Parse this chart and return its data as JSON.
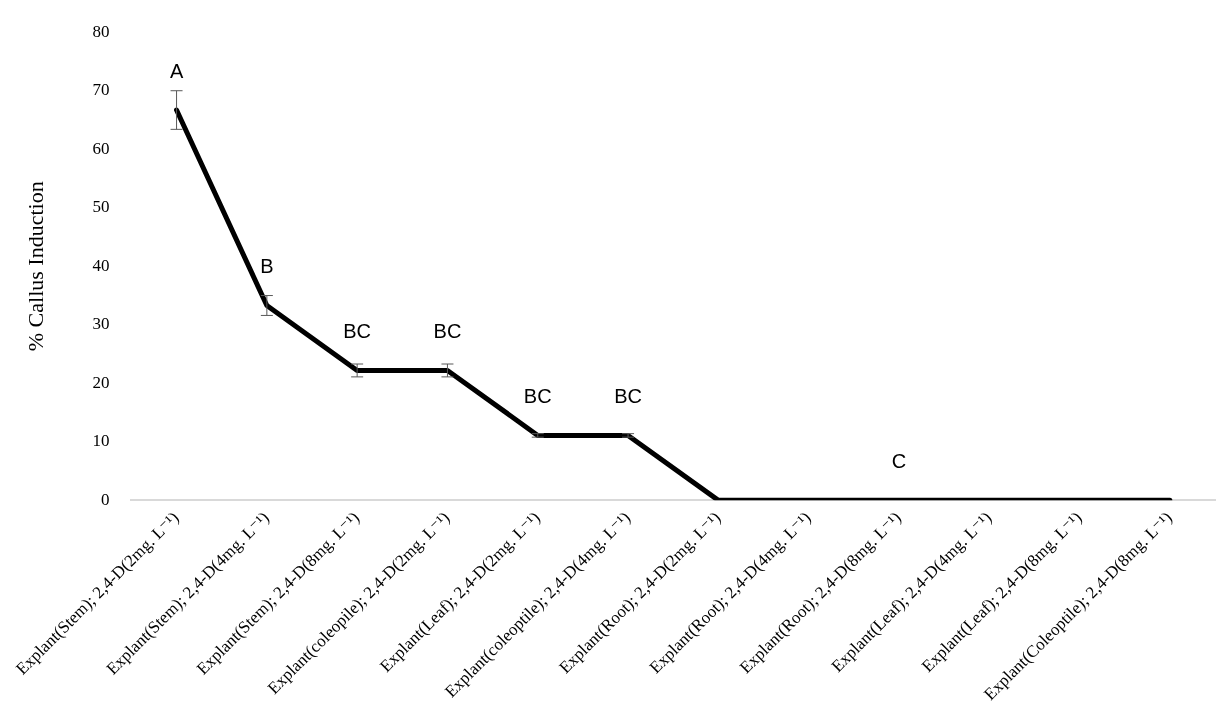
{
  "chart_data": {
    "type": "line",
    "ylabel": "% Callus Induction",
    "categories": [
      "Explant(Stem); 2,4-D(2mg. L⁻¹)",
      "Explant(Stem); 2,4-D(4mg. L⁻¹)",
      "Explant(Stem); 2,4-D(8mg. L⁻¹)",
      "Explant(coleopile); 2,4-D(2mg. L⁻¹)",
      "Explant(Leaf); 2,4-D(2mg. L⁻¹)",
      "Explant(coleoptile); 2,4-D(4mg. L⁻¹)",
      "Explant(Root); 2,4-D(2mg. L⁻¹)",
      "Explant(Root); 2,4-D(4mg. L⁻¹)",
      "Explant(Root); 2,4-D(8mg. L⁻¹)",
      "Explant(Leaf); 2,4-D(4mg. L⁻¹)",
      "Explant(Leaf); 2,4-D(8mg. L⁻¹)",
      "Explant(Coleoptile); 2,4-D(8mg. L⁻¹)"
    ],
    "series": [
      {
        "color": "#000000",
        "values": [
          66.7,
          33.3,
          22.2,
          22.2,
          11.1,
          11.1,
          0,
          0,
          0,
          0,
          0,
          0
        ],
        "errors": [
          3.3,
          1.7,
          1.1,
          1.1,
          0.3,
          0.3,
          null,
          null,
          null,
          null,
          null,
          null
        ]
      }
    ],
    "ylim": [
      0,
      80
    ],
    "yticks": [
      0,
      10,
      20,
      30,
      40,
      50,
      60,
      70,
      80
    ],
    "grid": false,
    "legend": false,
    "marker": "none",
    "line_style": "solid",
    "annotations": [
      {
        "text": "A",
        "x": "Explant(Stem); 2,4-D(2mg. L⁻¹)",
        "y": 66.7
      },
      {
        "text": "B",
        "x": "Explant(Stem); 2,4-D(4mg. L⁻¹)",
        "y": 33.3
      },
      {
        "text": "BC",
        "x": "Explant(Stem); 2,4-D(8mg. L⁻¹)",
        "y": 22.2
      },
      {
        "text": "BC",
        "x": "Explant(coleopile); 2,4-D(2mg. L⁻¹)",
        "y": 22.2
      },
      {
        "text": "BC",
        "x": "Explant(Leaf); 2,4-D(2mg. L⁻¹)",
        "y": 11.1
      },
      {
        "text": "BC",
        "x": "Explant(coleoptile); 2,4-D(4mg. L⁻¹)",
        "y": 11.1
      },
      {
        "text": "C",
        "x": "Explant(Root); 2,4-D(8mg. L⁻¹)",
        "y": 0
      }
    ]
  }
}
